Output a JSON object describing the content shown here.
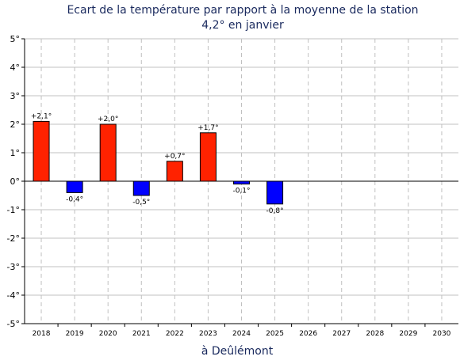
{
  "chart_data": {
    "type": "bar",
    "title_lines": [
      "Ecart de la température par rapport à la moyenne de la station",
      "4,2° en janvier"
    ],
    "footer": "à Deûlémont",
    "categories": [
      "2018",
      "2019",
      "2020",
      "2021",
      "2022",
      "2023",
      "2024",
      "2025",
      "2026",
      "2027",
      "2028",
      "2029",
      "2030"
    ],
    "values": [
      2.1,
      -0.4,
      2.0,
      -0.5,
      0.7,
      1.7,
      -0.1,
      -0.8,
      null,
      null,
      null,
      null,
      null
    ],
    "data_labels": [
      "+2,1°",
      "-0,4°",
      "+2,0°",
      "-0,5°",
      "+0,7°",
      "+1,7°",
      "-0,1°",
      "-0,8°",
      "",
      "",
      "",
      "",
      ""
    ],
    "ylim": [
      -5,
      5
    ],
    "yticks": [
      5,
      4,
      3,
      2,
      1,
      0,
      -1,
      -2,
      -3,
      -4,
      -5
    ],
    "ytick_labels": [
      "5°",
      "4°",
      "3°",
      "2°",
      "1°",
      "0°",
      "-1°",
      "-2°",
      "-3°",
      "-4°",
      "-5°"
    ],
    "grid": true,
    "colors": {
      "positive": "#ff2200",
      "negative": "#0000ff",
      "grid": "#c0c0c0",
      "title": "#1a2a5e"
    }
  }
}
